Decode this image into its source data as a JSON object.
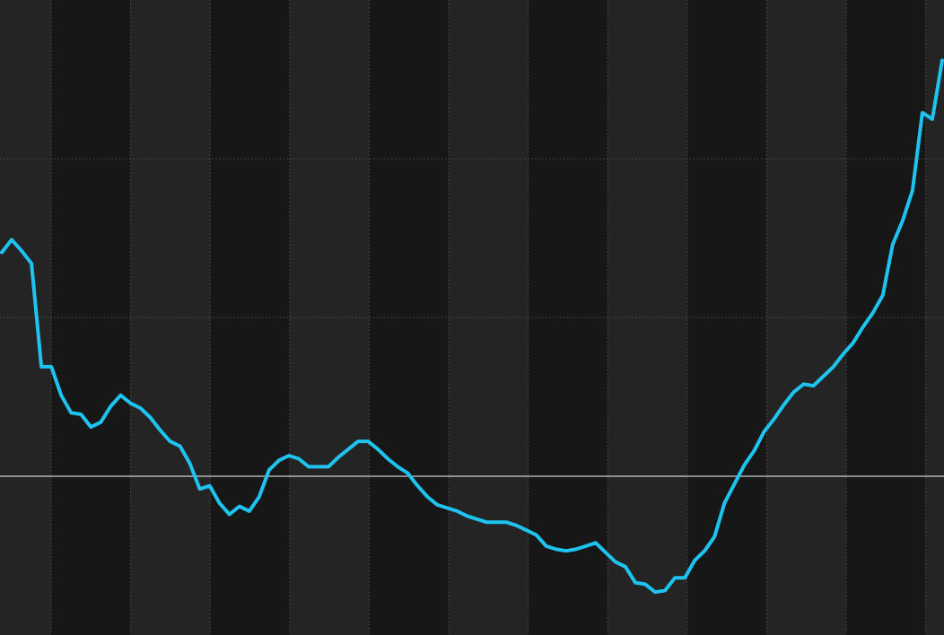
{
  "chart_data": {
    "type": "line",
    "title": "",
    "xlabel": "",
    "ylabel": "",
    "grid": true,
    "legend": "none",
    "x_range": [
      0,
      120
    ],
    "ylim": [
      -1.0,
      3.0
    ],
    "baseline": 0,
    "colors": {
      "background": "#171717",
      "band_alt": "#242424",
      "line": "#1ec3ef",
      "baseline": "#d0d0d0",
      "gridline": "#5a5a5a"
    },
    "series": [
      {
        "values": [
          1.41,
          1.49,
          1.42,
          1.34,
          0.69,
          0.69,
          0.51,
          0.4,
          0.39,
          0.31,
          0.34,
          0.44,
          0.51,
          0.46,
          0.43,
          0.37,
          0.29,
          0.22,
          0.19,
          0.08,
          -0.08,
          -0.06,
          -0.17,
          -0.24,
          -0.19,
          -0.22,
          -0.13,
          0.04,
          0.1,
          0.13,
          0.11,
          0.06,
          0.06,
          0.06,
          0.12,
          0.17,
          0.22,
          0.22,
          0.17,
          0.11,
          0.06,
          0.02,
          -0.06,
          -0.13,
          -0.18,
          -0.2,
          -0.22,
          -0.25,
          -0.27,
          -0.29,
          -0.29,
          -0.29,
          -0.31,
          -0.34,
          -0.37,
          -0.44,
          -0.46,
          -0.47,
          -0.46,
          -0.44,
          -0.42,
          -0.48,
          -0.54,
          -0.57,
          -0.67,
          -0.68,
          -0.73,
          -0.72,
          -0.64,
          -0.64,
          -0.53,
          -0.47,
          -0.38,
          -0.17,
          -0.05,
          0.07,
          0.16,
          0.28,
          0.36,
          0.45,
          0.53,
          0.58,
          0.57,
          0.63,
          0.69,
          0.77,
          0.84,
          0.94,
          1.03,
          1.14,
          1.46,
          1.61,
          1.8,
          2.29,
          2.25,
          2.62
        ]
      }
    ]
  }
}
